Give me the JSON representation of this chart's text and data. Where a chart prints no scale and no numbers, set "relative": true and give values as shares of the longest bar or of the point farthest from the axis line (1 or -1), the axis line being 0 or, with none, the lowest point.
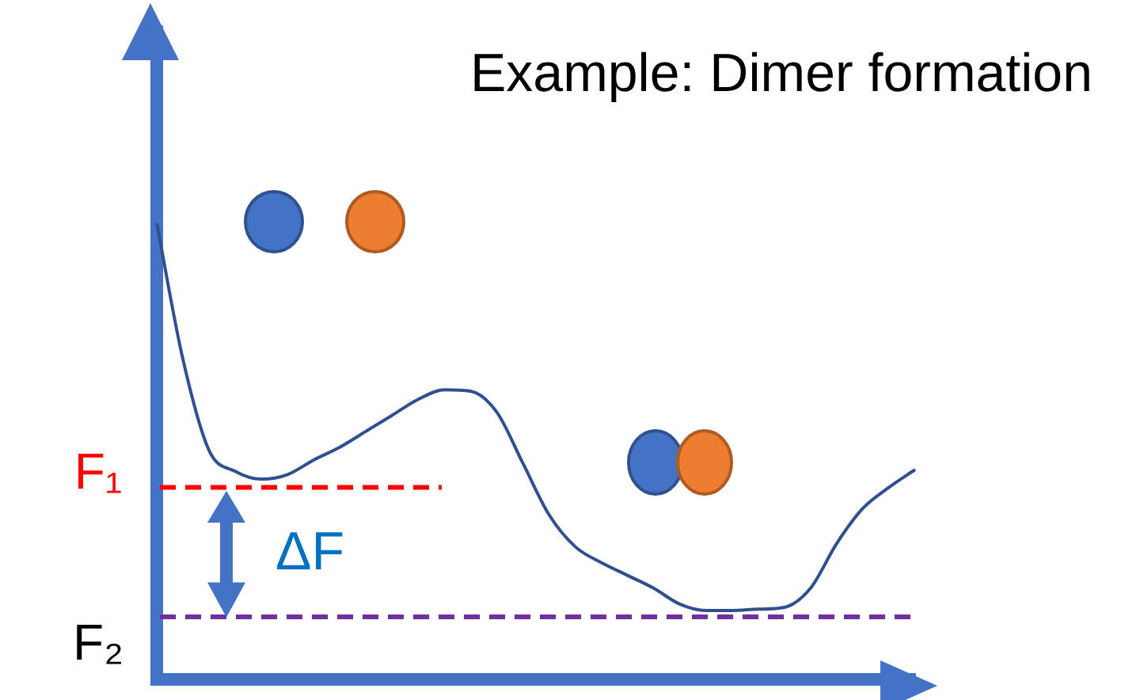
{
  "chart_data": {
    "type": "line",
    "relative": true,
    "title": "Example: Dimer formation",
    "categories": [
      null,
      null,
      null,
      null,
      null,
      null,
      null,
      null,
      null,
      null,
      null,
      null,
      null,
      null,
      null,
      null,
      null,
      null,
      null,
      null,
      null,
      null,
      null,
      null,
      null,
      null,
      null,
      null,
      null,
      null
    ],
    "series": [
      {
        "color": "#2f4f8f",
        "values": [
          1,
          0.702,
          0.502,
          0.456,
          0.439,
          0.449,
          0.481,
          0.509,
          0.544,
          0.579,
          0.614,
          0.635,
          0.632,
          0.586,
          0.474,
          0.361,
          0.291,
          0.256,
          0.228,
          0.2,
          0.165,
          0.151,
          0.151,
          0.154,
          0.158,
          0.2,
          0.298,
          0.375,
          0.421,
          0.46
        ]
      }
    ],
    "ref_lines": [
      {
        "axis": "y",
        "value": 0.421,
        "label": "F₁",
        "color": "#ff0000",
        "line_style": "dashed"
      },
      {
        "axis": "y",
        "value": 0.137,
        "label": "F₂",
        "color": "#7030a0",
        "line_style": "dashed"
      }
    ],
    "annotations": [
      "ΔF"
    ],
    "legend": false,
    "marker": "none",
    "line_style": "solid"
  }
}
